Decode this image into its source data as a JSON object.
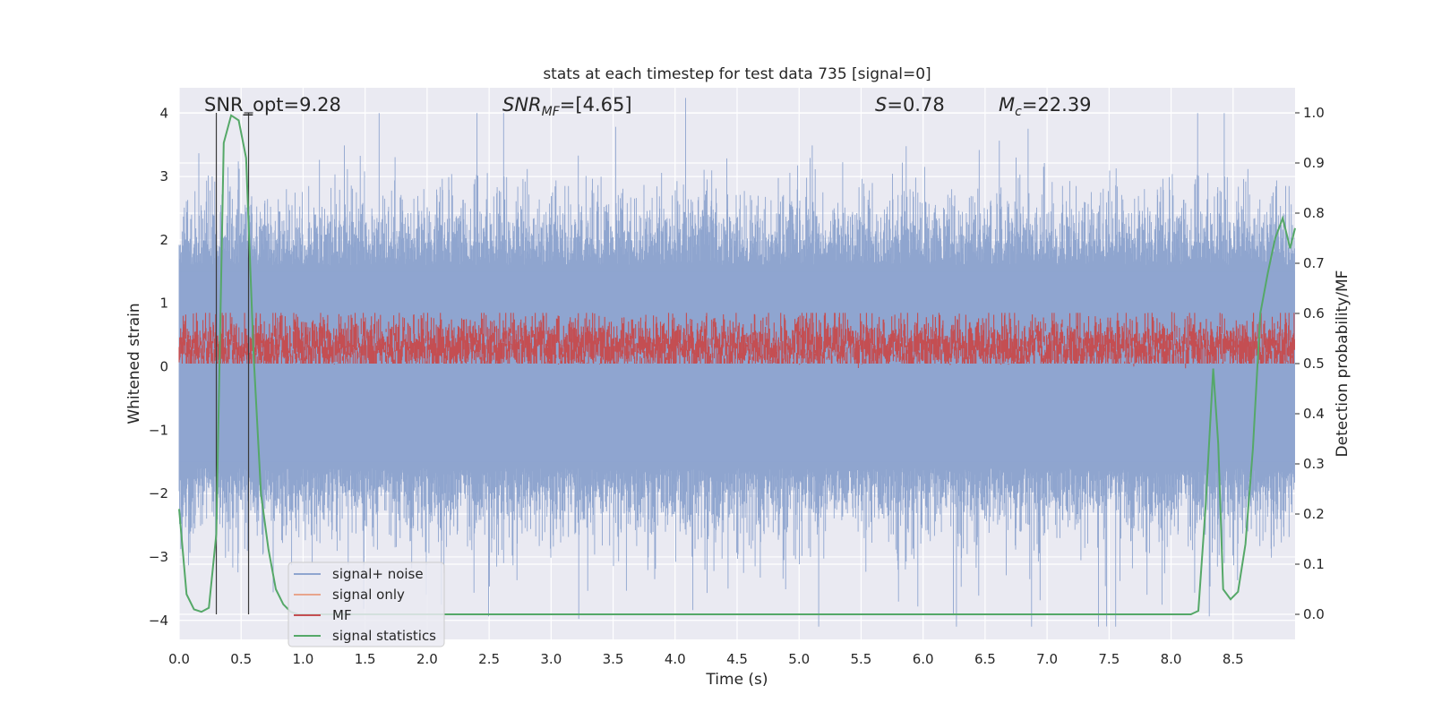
{
  "chart_data": {
    "type": "line",
    "title": "stats at each timestep for test data 735 [signal=0]",
    "xlabel": "Time (s)",
    "ylabel_left": "Whitened strain",
    "ylabel_right": "Detection probability/MF",
    "xlim": [
      0.0,
      9.0
    ],
    "ylim_left": [
      -4.3,
      4.4
    ],
    "ylim_right": [
      -0.05,
      1.05
    ],
    "x_ticks": [
      "0.0",
      "0.5",
      "1.0",
      "1.5",
      "2.0",
      "2.5",
      "3.0",
      "3.5",
      "4.0",
      "4.5",
      "5.0",
      "5.5",
      "6.0",
      "6.5",
      "7.0",
      "7.5",
      "8.0",
      "8.5"
    ],
    "y_left_ticks": [
      "4",
      "3",
      "2",
      "1",
      "0",
      "−1",
      "−2",
      "−3",
      "−4"
    ],
    "y_right_ticks": [
      "1.0",
      "0.9",
      "0.8",
      "0.7",
      "0.6",
      "0.5",
      "0.4",
      "0.3",
      "0.2",
      "0.1",
      "0.0"
    ],
    "grid": true,
    "legend_position": "lower-left",
    "annotations": {
      "snr_opt": "SNR_opt=9.28",
      "snr_mf_base": "SNR",
      "snr_mf_sub": "MF",
      "snr_mf_value": "=[4.65]",
      "s_base": "S",
      "s_value": "=0.78",
      "mc_base": "M",
      "mc_sub": "c",
      "mc_value": "=22.39"
    },
    "vertical_markers_x": [
      0.3,
      0.56
    ],
    "series": [
      {
        "name": "signal+ noise",
        "color": "#8fa5cf",
        "axis": "left",
        "description_range": [
          -4.1,
          4.0
        ],
        "typical_band": [
          -1.6,
          1.6
        ]
      },
      {
        "name": "signal only",
        "color": "#e8a58d",
        "axis": "left",
        "values": []
      },
      {
        "name": "MF",
        "color": "#c44e52",
        "axis": "left",
        "typical_band": [
          0.05,
          0.85
        ]
      },
      {
        "name": "signal statistics",
        "color": "#55a868",
        "axis": "right",
        "x": [
          0.0,
          0.06,
          0.12,
          0.18,
          0.24,
          0.3,
          0.36,
          0.42,
          0.48,
          0.54,
          0.6,
          0.66,
          0.72,
          0.78,
          0.84,
          0.9,
          0.96,
          1.02,
          1.5,
          2.0,
          3.0,
          4.0,
          5.0,
          6.0,
          7.0,
          8.0,
          8.16,
          8.22,
          8.28,
          8.34,
          8.38,
          8.42,
          8.48,
          8.54,
          8.6,
          8.66,
          8.72,
          8.78,
          8.84,
          8.9,
          8.96,
          9.0
        ],
        "y": [
          0.21,
          0.04,
          0.01,
          0.005,
          0.013,
          0.16,
          0.94,
          0.995,
          0.985,
          0.91,
          0.52,
          0.24,
          0.13,
          0.05,
          0.02,
          0.005,
          0.0,
          0.0,
          0.0,
          0.0,
          0.0,
          0.0,
          0.0,
          0.0,
          0.0,
          0.0,
          0.0,
          0.007,
          0.22,
          0.49,
          0.34,
          0.05,
          0.03,
          0.045,
          0.14,
          0.33,
          0.6,
          0.68,
          0.75,
          0.79,
          0.73,
          0.77
        ]
      }
    ]
  }
}
